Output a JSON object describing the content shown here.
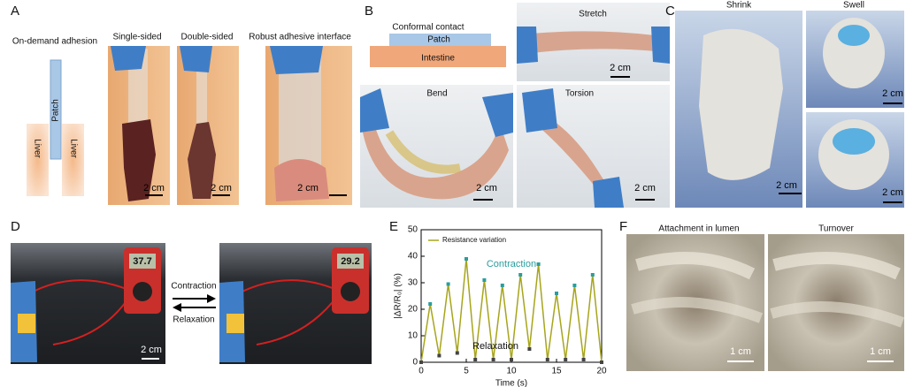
{
  "panel_a": {
    "label": "A",
    "captions": [
      "On-demand adhesion",
      "Single-sided",
      "Double-sided",
      "Robust adhesive interface"
    ],
    "patch": "Patch",
    "liver": [
      "Liver",
      "Liver"
    ],
    "scale_bars": [
      "2 cm",
      "2 cm",
      "2 cm"
    ]
  },
  "panel_b": {
    "label": "B",
    "conformal": "Conformal contact",
    "patch": "Patch",
    "intestine": "Intestine",
    "captions": [
      "Stretch",
      "Bend",
      "Torsion"
    ],
    "scale_bars": [
      "2 cm",
      "2 cm",
      "2 cm"
    ]
  },
  "panel_c": {
    "label": "C",
    "captions": [
      "Shrink",
      "Swell"
    ],
    "scale_bars": [
      "2 cm",
      "2 cm",
      "2 cm"
    ]
  },
  "panel_d": {
    "label": "D",
    "arrows": [
      "Contraction",
      "Relaxation"
    ],
    "displays": [
      "37.7",
      "29.2"
    ],
    "scale_bars": [
      "2 cm"
    ]
  },
  "chart_data": {
    "type": "line",
    "label": "E",
    "x": [
      0,
      1,
      2,
      3,
      4,
      5,
      6,
      7,
      8,
      9,
      10,
      11,
      12,
      13,
      14,
      15,
      16,
      17,
      18,
      19,
      20
    ],
    "series": [
      {
        "name": "Resistance variation",
        "color": "#a7a51c",
        "values": [
          0,
          22,
          2.5,
          29.5,
          3.5,
          39,
          1,
          31,
          1,
          29,
          1,
          33,
          5,
          37,
          1,
          26,
          1,
          29,
          1,
          33,
          0
        ],
        "marker_colors": [
          "#444",
          "#2a9d9d",
          "#444",
          "#2a9d9d",
          "#444",
          "#2a9d9d",
          "#444",
          "#2a9d9d",
          "#444",
          "#2a9d9d",
          "#444",
          "#2a9d9d",
          "#444",
          "#2a9d9d",
          "#444",
          "#2a9d9d",
          "#444",
          "#2a9d9d",
          "#444",
          "#2a9d9d",
          "#444"
        ]
      }
    ],
    "xlim": [
      0,
      20
    ],
    "xticks": [
      0,
      5,
      10,
      15,
      20
    ],
    "ylim": [
      0,
      50
    ],
    "yticks": [
      0,
      10,
      20,
      30,
      40,
      50
    ],
    "xlabel": "Time (s)",
    "ylabel": "|ΔR/R₀| (%)",
    "annotations": [
      {
        "text": "Contraction",
        "color": "#2a9d9d"
      },
      {
        "text": "Relaxation",
        "color": "#111"
      }
    ]
  },
  "panel_f": {
    "label": "F",
    "captions": [
      "Attachment  in lumen",
      "Turnover"
    ],
    "scale_bars": [
      "1 cm",
      "1 cm"
    ]
  }
}
